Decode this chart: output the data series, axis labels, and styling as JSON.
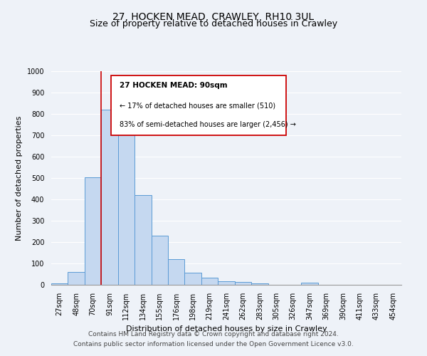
{
  "title": "27, HOCKEN MEAD, CRAWLEY, RH10 3UL",
  "subtitle": "Size of property relative to detached houses in Crawley",
  "xlabel": "Distribution of detached houses by size in Crawley",
  "ylabel": "Number of detached properties",
  "bar_labels": [
    "27sqm",
    "48sqm",
    "70sqm",
    "91sqm",
    "112sqm",
    "134sqm",
    "155sqm",
    "176sqm",
    "198sqm",
    "219sqm",
    "241sqm",
    "262sqm",
    "283sqm",
    "305sqm",
    "326sqm",
    "347sqm",
    "369sqm",
    "390sqm",
    "411sqm",
    "433sqm",
    "454sqm"
  ],
  "bar_heights": [
    8,
    60,
    505,
    820,
    710,
    420,
    230,
    120,
    57,
    35,
    18,
    12,
    8,
    0,
    0,
    10,
    0,
    0,
    0,
    0,
    0
  ],
  "bar_color": "#c5d8f0",
  "bar_edge_color": "#5b9bd5",
  "ylim": [
    0,
    1000
  ],
  "yticks": [
    0,
    100,
    200,
    300,
    400,
    500,
    600,
    700,
    800,
    900,
    1000
  ],
  "marker_index": 3,
  "marker_color": "#cc0000",
  "annotation_title": "27 HOCKEN MEAD: 90sqm",
  "annotation_line1": "← 17% of detached houses are smaller (510)",
  "annotation_line2": "83% of semi-detached houses are larger (2,456) →",
  "annotation_box_color": "#cc0000",
  "footer1": "Contains HM Land Registry data © Crown copyright and database right 2024.",
  "footer2": "Contains public sector information licensed under the Open Government Licence v3.0.",
  "bg_color": "#eef2f8",
  "plot_bg_color": "#eef2f8",
  "grid_color": "#ffffff",
  "title_fontsize": 10,
  "subtitle_fontsize": 9,
  "axis_label_fontsize": 8,
  "tick_fontsize": 7,
  "footer_fontsize": 6.5
}
